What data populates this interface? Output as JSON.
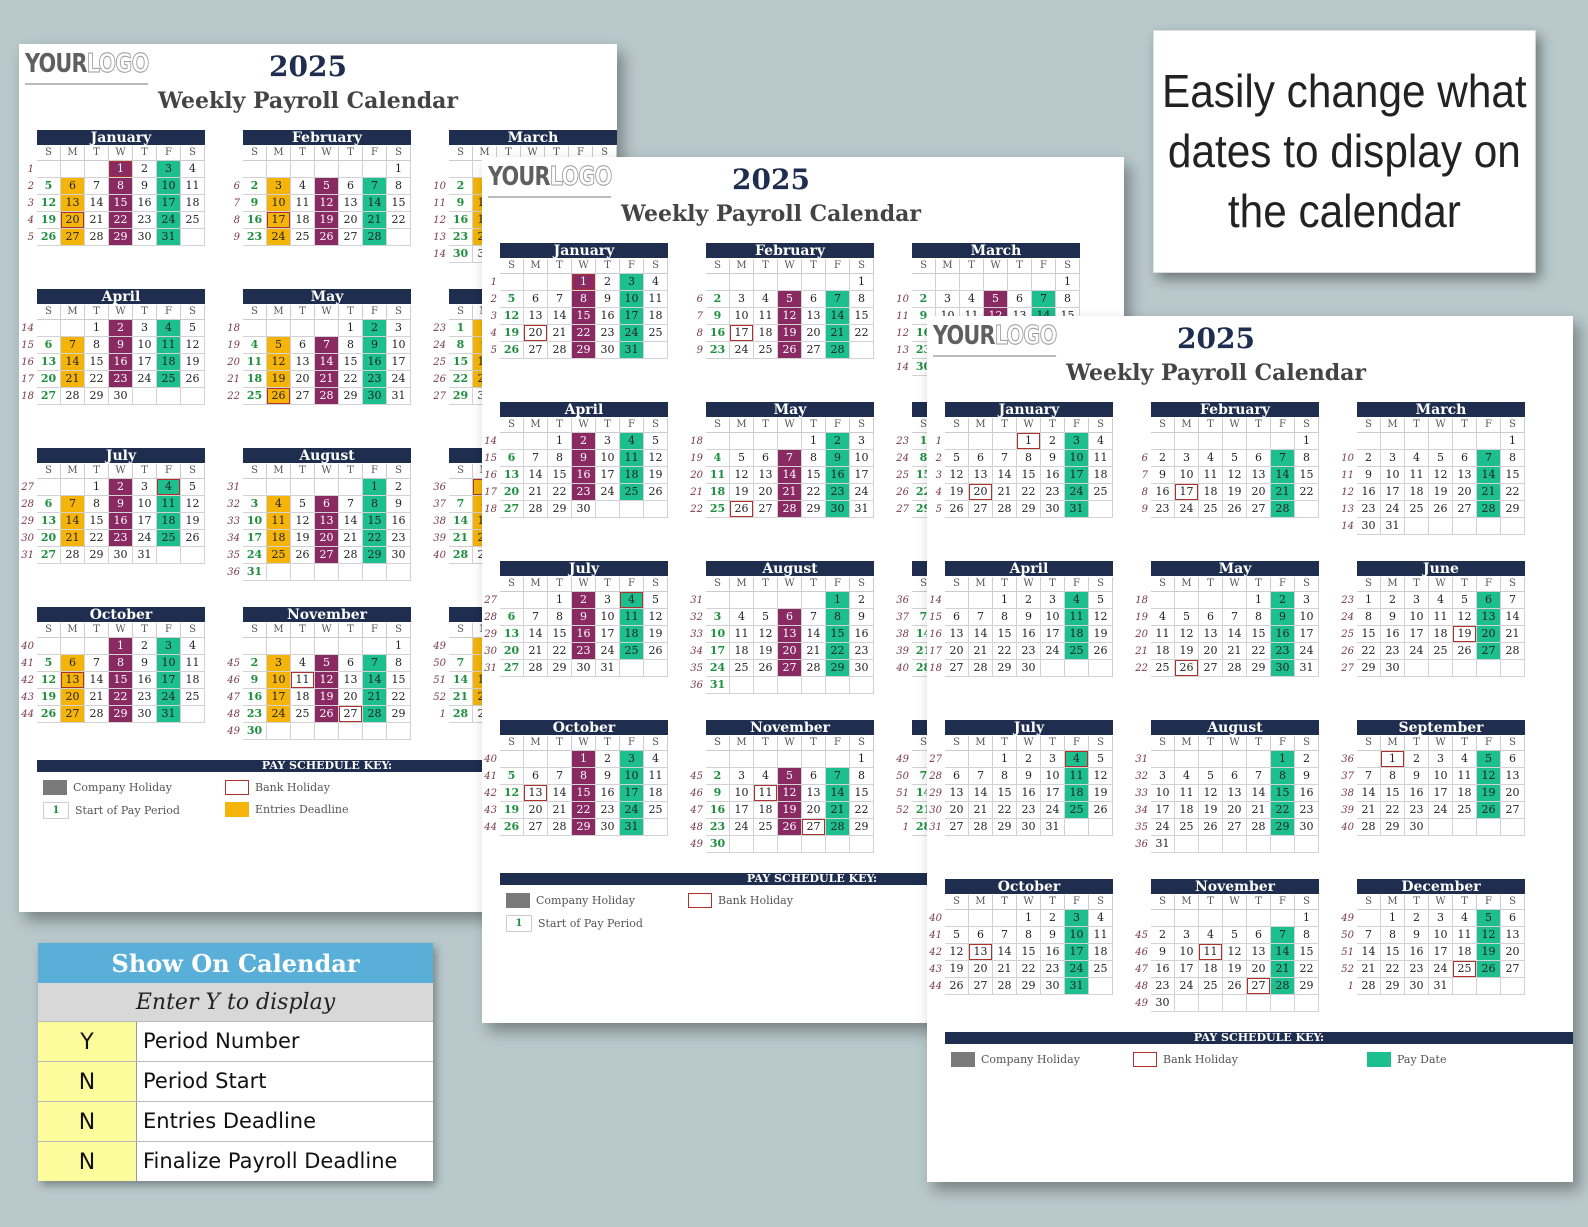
{
  "calendar": {
    "logo_your": "YOUR",
    "logo_logo": "LOGO",
    "year": "2025",
    "subtitle": "Weekly Payroll Calendar",
    "dow": [
      "S",
      "M",
      "T",
      "W",
      "T",
      "F",
      "S"
    ],
    "key_title": "PAY SCHEDULE KEY:",
    "key_company_holiday": "Company Holiday",
    "key_bank_holiday": "Bank Holiday",
    "key_start": "Start of Pay Period",
    "key_start_sample": "1",
    "key_entries": "Entries Deadline",
    "key_pay_date": "Pay Date",
    "months": [
      {
        "name": "January",
        "offset": 3,
        "days": 31,
        "weeks": [
          "1",
          "2",
          "3",
          "4",
          "5"
        ],
        "pay": [
          3,
          10,
          17,
          24,
          31
        ],
        "bank": [
          1,
          20
        ]
      },
      {
        "name": "February",
        "offset": 6,
        "days": 28,
        "weeks": [
          "",
          "6",
          "7",
          "8",
          "9"
        ],
        "pay": [
          7,
          14,
          21,
          28
        ],
        "bank": [
          17
        ]
      },
      {
        "name": "March",
        "offset": 6,
        "days": 31,
        "weeks": [
          "",
          "10",
          "11",
          "12",
          "13",
          "14"
        ],
        "pay": [
          7,
          14,
          21,
          28
        ],
        "bank": []
      },
      {
        "name": "April",
        "offset": 2,
        "days": 30,
        "weeks": [
          "14",
          "15",
          "16",
          "17",
          "18"
        ],
        "pay": [
          4,
          11,
          18,
          25
        ],
        "bank": []
      },
      {
        "name": "May",
        "offset": 4,
        "days": 31,
        "weeks": [
          "18",
          "19",
          "20",
          "21",
          "22"
        ],
        "pay": [
          2,
          9,
          16,
          23,
          30
        ],
        "bank": [
          26
        ]
      },
      {
        "name": "June",
        "offset": 0,
        "days": 30,
        "weeks": [
          "23",
          "24",
          "25",
          "26",
          "27"
        ],
        "pay": [
          6,
          13,
          20,
          27
        ],
        "bank": [
          19
        ]
      },
      {
        "name": "July",
        "offset": 2,
        "days": 31,
        "weeks": [
          "27",
          "28",
          "29",
          "30",
          "31"
        ],
        "pay": [
          4,
          11,
          18,
          25
        ],
        "bank": [
          4
        ]
      },
      {
        "name": "August",
        "offset": 5,
        "days": 31,
        "weeks": [
          "31",
          "32",
          "33",
          "34",
          "35",
          "36"
        ],
        "pay": [
          1,
          8,
          15,
          22,
          29
        ],
        "bank": []
      },
      {
        "name": "September",
        "offset": 1,
        "days": 30,
        "weeks": [
          "36",
          "37",
          "38",
          "39",
          "40"
        ],
        "pay": [
          5,
          12,
          19,
          26
        ],
        "bank": [
          1
        ]
      },
      {
        "name": "October",
        "offset": 3,
        "days": 31,
        "weeks": [
          "40",
          "41",
          "42",
          "43",
          "44"
        ],
        "pay": [
          3,
          10,
          17,
          24,
          31
        ],
        "bank": [
          13
        ]
      },
      {
        "name": "November",
        "offset": 6,
        "days": 30,
        "weeks": [
          "",
          "45",
          "46",
          "47",
          "48",
          "49"
        ],
        "pay": [
          7,
          14,
          21,
          28
        ],
        "bank": [
          11,
          27
        ]
      },
      {
        "name": "December",
        "offset": 1,
        "days": 31,
        "weeks": [
          "49",
          "50",
          "51",
          "52",
          "1"
        ],
        "pay": [
          5,
          12,
          19,
          26
        ],
        "bank": [
          25
        ]
      }
    ]
  },
  "callout": {
    "text": "Easily change what dates to display on the calendar"
  },
  "options": {
    "title": "Show On Calendar",
    "subtitle": "Enter Y to display",
    "rows": [
      {
        "value": "Y",
        "label": "Period Number"
      },
      {
        "value": "N",
        "label": "Period Start"
      },
      {
        "value": "N",
        "label": "Entries Deadline"
      },
      {
        "value": "N",
        "label": "Finalize Payroll Deadline"
      }
    ]
  },
  "colors": {
    "navy": "#1f2d4f",
    "pay_date": "#1dbf8e",
    "finalize": "#8a2a63",
    "entries": "#f5b40a",
    "bank_holiday_border": "#b0302e",
    "options_header": "#5aafd8",
    "options_value_bg": "#fcfc9c"
  }
}
